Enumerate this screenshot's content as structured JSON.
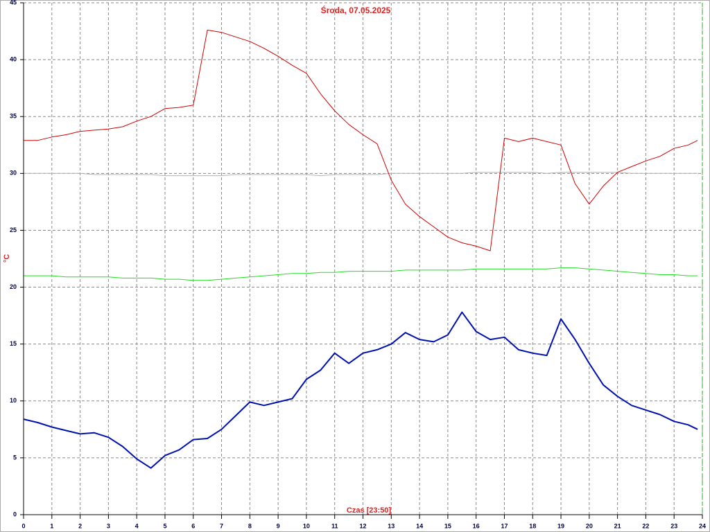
{
  "chart_data": {
    "type": "line",
    "title": "Środa, 07.05.2025",
    "x_label": "Czas [23:50]",
    "y_label": "°C",
    "x": [
      0,
      0.5,
      1,
      1.5,
      2,
      2.5,
      3,
      3.5,
      4,
      4.5,
      5,
      5.5,
      6,
      6.5,
      7,
      7.5,
      8,
      8.5,
      9,
      9.5,
      10,
      10.5,
      11,
      11.5,
      12,
      12.5,
      13,
      13.5,
      14,
      14.5,
      15,
      15.5,
      16,
      16.5,
      17,
      17.5,
      18,
      18.5,
      19,
      19.5,
      20,
      20.5,
      21,
      21.5,
      22,
      22.5,
      23,
      23.5,
      23.83
    ],
    "series": [
      {
        "color": "#b4b4b4",
        "values": [
          30.0,
          30.0,
          30.0,
          30.0,
          30.0,
          29.9,
          29.9,
          29.9,
          29.9,
          29.9,
          29.8,
          29.8,
          29.8,
          29.8,
          29.8,
          29.9,
          29.9,
          29.9,
          29.9,
          29.9,
          29.9,
          29.8,
          29.9,
          29.9,
          29.9,
          29.9,
          30.0,
          30.0,
          30.0,
          30.0,
          30.0,
          30.0,
          30.1,
          30.1,
          30.1,
          30.1,
          30.1,
          30.0,
          30.1,
          30.1,
          30.1,
          30.1,
          30.1,
          30.0,
          30.0,
          30.0,
          30.0,
          30.0,
          30.0
        ]
      },
      {
        "color": "#22dd22",
        "values": [
          21.0,
          21.0,
          21.0,
          20.9,
          20.9,
          20.9,
          20.9,
          20.8,
          20.8,
          20.8,
          20.7,
          20.7,
          20.6,
          20.6,
          20.7,
          20.8,
          20.9,
          21.0,
          21.1,
          21.2,
          21.2,
          21.3,
          21.3,
          21.4,
          21.4,
          21.4,
          21.4,
          21.5,
          21.5,
          21.5,
          21.5,
          21.5,
          21.6,
          21.6,
          21.6,
          21.6,
          21.6,
          21.6,
          21.7,
          21.7,
          21.6,
          21.5,
          21.4,
          21.3,
          21.2,
          21.1,
          21.1,
          21.0,
          21.0
        ]
      },
      {
        "color": "#d00000",
        "values": [
          32.9,
          32.9,
          33.2,
          33.4,
          33.7,
          33.8,
          33.9,
          34.1,
          34.6,
          35.0,
          35.7,
          35.8,
          36.0,
          42.6,
          42.4,
          42.0,
          41.6,
          41.0,
          40.3,
          39.5,
          38.8,
          37.0,
          35.5,
          34.3,
          33.4,
          32.6,
          29.4,
          27.3,
          26.2,
          25.3,
          24.4,
          23.9,
          23.6,
          23.2,
          33.1,
          32.8,
          33.1,
          32.8,
          32.5,
          29.1,
          27.3,
          28.9,
          30.1,
          30.6,
          31.1,
          31.5,
          32.2,
          32.5,
          32.9
        ]
      },
      {
        "color": "#0010b0",
        "values": [
          8.4,
          8.1,
          7.7,
          7.4,
          7.1,
          7.2,
          6.8,
          6.0,
          4.9,
          4.1,
          5.2,
          5.7,
          6.6,
          6.7,
          7.5,
          8.7,
          9.9,
          9.6,
          9.9,
          10.2,
          11.9,
          12.7,
          14.2,
          13.3,
          14.2,
          14.5,
          15.0,
          16.0,
          15.4,
          15.2,
          15.8,
          17.8,
          16.1,
          15.4,
          15.6,
          14.5,
          14.2,
          14.0,
          17.2,
          15.4,
          13.3,
          11.4,
          10.4,
          9.6,
          9.2,
          8.8,
          8.2,
          7.9,
          7.5
        ]
      }
    ],
    "xlim": [
      0,
      24
    ],
    "xticks": [
      0,
      1,
      2,
      3,
      4,
      5,
      6,
      7,
      8,
      9,
      10,
      11,
      12,
      13,
      14,
      15,
      16,
      17,
      18,
      19,
      20,
      21,
      22,
      23,
      24
    ],
    "ylim": [
      0,
      45
    ],
    "yticks": [
      0,
      5,
      10,
      15,
      20,
      25,
      30,
      35,
      40,
      45
    ],
    "grid": true
  }
}
